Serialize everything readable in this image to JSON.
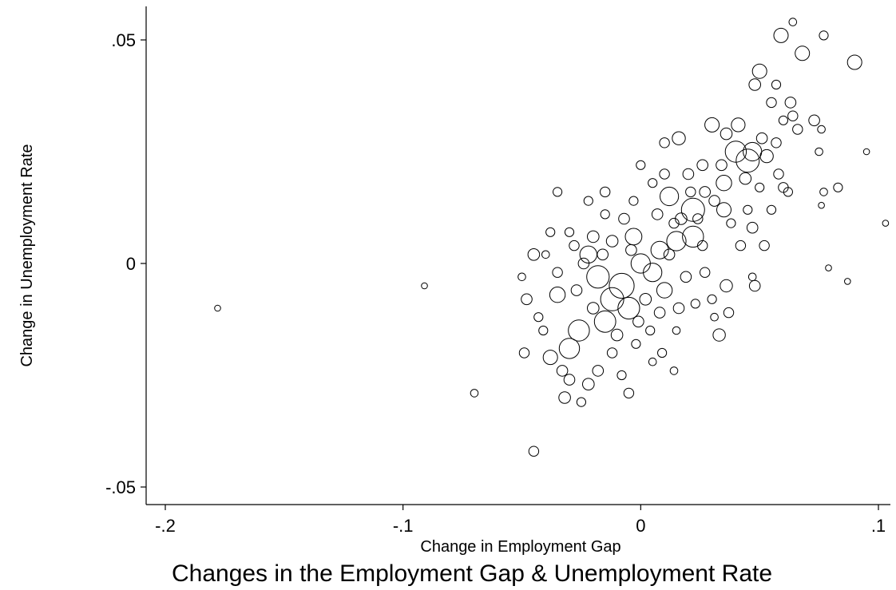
{
  "chart_data": {
    "type": "scatter",
    "title": "Changes in the Employment Gap & Unemployment Rate",
    "xlabel": "Change in Employment Gap",
    "ylabel": "Change in Unemployment Rate",
    "xlim": [
      -0.2,
      0.1
    ],
    "ylim": [
      -0.05,
      0.05
    ],
    "x_ticks": [
      {
        "value": -0.2,
        "label": "-.2"
      },
      {
        "value": -0.1,
        "label": "-.1"
      },
      {
        "value": 0,
        "label": "0"
      },
      {
        "value": 0.1,
        "label": ".1"
      }
    ],
    "y_ticks": [
      {
        "value": -0.05,
        "label": "-.05"
      },
      {
        "value": 0,
        "label": "0"
      },
      {
        "value": 0.05,
        "label": ".05"
      }
    ],
    "grid": false,
    "legend": "none",
    "marker": "hollow circle, size proportional to weight",
    "colors": {
      "marker": "#000000",
      "background": "#ffffff"
    },
    "points": [
      {
        "x": -0.178,
        "y": -0.01,
        "w": 1
      },
      {
        "x": -0.091,
        "y": -0.005,
        "w": 1
      },
      {
        "x": -0.07,
        "y": -0.029,
        "w": 2
      },
      {
        "x": -0.045,
        "y": -0.042,
        "w": 4
      },
      {
        "x": 0.059,
        "y": 0.051,
        "w": 10
      },
      {
        "x": 0.064,
        "y": 0.054,
        "w": 2
      },
      {
        "x": 0.068,
        "y": 0.047,
        "w": 10
      },
      {
        "x": 0.077,
        "y": 0.051,
        "w": 3
      },
      {
        "x": 0.09,
        "y": 0.045,
        "w": 10
      },
      {
        "x": 0.095,
        "y": 0.025,
        "w": 1
      },
      {
        "x": 0.103,
        "y": 0.009,
        "w": 1
      },
      {
        "x": 0.087,
        "y": -0.004,
        "w": 1
      },
      {
        "x": 0.079,
        "y": -0.001,
        "w": 1
      },
      {
        "x": 0.083,
        "y": 0.017,
        "w": 3
      },
      {
        "x": 0.076,
        "y": 0.03,
        "w": 2
      },
      {
        "x": 0.073,
        "y": 0.032,
        "w": 5
      },
      {
        "x": 0.077,
        "y": 0.016,
        "w": 2
      },
      {
        "x": 0.076,
        "y": 0.013,
        "w": 1
      },
      {
        "x": 0.075,
        "y": 0.025,
        "w": 2
      },
      {
        "x": 0.05,
        "y": 0.043,
        "w": 10
      },
      {
        "x": 0.048,
        "y": 0.04,
        "w": 6
      },
      {
        "x": 0.057,
        "y": 0.04,
        "w": 3
      },
      {
        "x": 0.055,
        "y": 0.036,
        "w": 4
      },
      {
        "x": 0.063,
        "y": 0.036,
        "w": 5
      },
      {
        "x": 0.06,
        "y": 0.032,
        "w": 3
      },
      {
        "x": 0.066,
        "y": 0.03,
        "w": 4
      },
      {
        "x": 0.064,
        "y": 0.033,
        "w": 4
      },
      {
        "x": 0.045,
        "y": 0.023,
        "w": 30
      },
      {
        "x": 0.04,
        "y": 0.025,
        "w": 24
      },
      {
        "x": 0.047,
        "y": 0.025,
        "w": 18
      },
      {
        "x": 0.035,
        "y": 0.018,
        "w": 12
      },
      {
        "x": 0.03,
        "y": 0.031,
        "w": 10
      },
      {
        "x": 0.022,
        "y": 0.012,
        "w": 30
      },
      {
        "x": 0.022,
        "y": 0.006,
        "w": 24
      },
      {
        "x": 0.015,
        "y": 0.005,
        "w": 20
      },
      {
        "x": 0.012,
        "y": 0.015,
        "w": 18
      },
      {
        "x": 0.016,
        "y": 0.028,
        "w": 8
      },
      {
        "x": 0.035,
        "y": 0.012,
        "w": 10
      },
      {
        "x": 0.047,
        "y": 0.008,
        "w": 5
      },
      {
        "x": 0.052,
        "y": 0.004,
        "w": 4
      },
      {
        "x": 0.06,
        "y": 0.017,
        "w": 4
      },
      {
        "x": 0.062,
        "y": 0.016,
        "w": 3
      },
      {
        "x": -0.008,
        "y": -0.005,
        "w": 35
      },
      {
        "x": -0.012,
        "y": -0.008,
        "w": 30
      },
      {
        "x": -0.018,
        "y": -0.003,
        "w": 28
      },
      {
        "x": -0.005,
        "y": -0.01,
        "w": 26
      },
      {
        "x": -0.015,
        "y": -0.013,
        "w": 25
      },
      {
        "x": -0.026,
        "y": -0.015,
        "w": 24
      },
      {
        "x": -0.03,
        "y": -0.019,
        "w": 22
      },
      {
        "x": 0.0,
        "y": 0.0,
        "w": 20
      },
      {
        "x": 0.005,
        "y": -0.002,
        "w": 18
      },
      {
        "x": 0.008,
        "y": 0.003,
        "w": 16
      },
      {
        "x": -0.022,
        "y": 0.002,
        "w": 15
      },
      {
        "x": -0.003,
        "y": 0.006,
        "w": 14
      },
      {
        "x": 0.01,
        "y": -0.006,
        "w": 12
      },
      {
        "x": -0.035,
        "y": -0.007,
        "w": 12
      },
      {
        "x": -0.038,
        "y": -0.021,
        "w": 10
      },
      {
        "x": -0.032,
        "y": -0.03,
        "w": 6
      },
      {
        "x": -0.03,
        "y": -0.026,
        "w": 5
      },
      {
        "x": -0.022,
        "y": -0.027,
        "w": 6
      },
      {
        "x": -0.005,
        "y": -0.029,
        "w": 4
      },
      {
        "x": -0.025,
        "y": -0.031,
        "w": 3
      },
      {
        "x": -0.045,
        "y": 0.002,
        "w": 6
      },
      {
        "x": -0.048,
        "y": -0.008,
        "w": 5
      },
      {
        "x": -0.05,
        "y": -0.003,
        "w": 2
      },
      {
        "x": -0.043,
        "y": -0.012,
        "w": 3
      },
      {
        "x": -0.049,
        "y": -0.02,
        "w": 4
      },
      {
        "x": -0.035,
        "y": 0.016,
        "w": 3
      },
      {
        "x": -0.022,
        "y": 0.014,
        "w": 3
      },
      {
        "x": -0.015,
        "y": 0.011,
        "w": 3
      },
      {
        "x": -0.015,
        "y": 0.016,
        "w": 4
      },
      {
        "x": 0.0,
        "y": 0.022,
        "w": 3
      },
      {
        "x": -0.003,
        "y": 0.014,
        "w": 3
      },
      {
        "x": 0.01,
        "y": 0.027,
        "w": 4
      },
      {
        "x": 0.033,
        "y": -0.016,
        "w": 7
      },
      {
        "x": 0.036,
        "y": -0.005,
        "w": 7
      },
      {
        "x": 0.048,
        "y": -0.005,
        "w": 5
      },
      {
        "x": 0.047,
        "y": -0.003,
        "w": 2
      },
      {
        "x": 0.037,
        "y": -0.011,
        "w": 4
      },
      {
        "x": 0.031,
        "y": -0.012,
        "w": 2
      },
      {
        "x": 0.03,
        "y": -0.008,
        "w": 3
      },
      {
        "x": 0.023,
        "y": -0.009,
        "w": 3
      },
      {
        "x": 0.014,
        "y": -0.024,
        "w": 2
      },
      {
        "x": 0.009,
        "y": -0.02,
        "w": 3
      },
      {
        "x": 0.015,
        "y": -0.015,
        "w": 2
      },
      {
        "x": 0.042,
        "y": 0.004,
        "w": 4
      },
      {
        "x": 0.038,
        "y": 0.009,
        "w": 3
      },
      {
        "x": 0.044,
        "y": 0.019,
        "w": 6
      },
      {
        "x": 0.053,
        "y": 0.024,
        "w": 8
      },
      {
        "x": 0.051,
        "y": 0.028,
        "w": 5
      },
      {
        "x": 0.041,
        "y": 0.031,
        "w": 9
      },
      {
        "x": 0.036,
        "y": 0.029,
        "w": 6
      },
      {
        "x": 0.057,
        "y": 0.027,
        "w": 4
      },
      {
        "x": 0.058,
        "y": 0.02,
        "w": 4
      },
      {
        "x": 0.026,
        "y": 0.022,
        "w": 5
      },
      {
        "x": 0.02,
        "y": 0.02,
        "w": 5
      },
      {
        "x": 0.027,
        "y": 0.016,
        "w": 5
      },
      {
        "x": 0.01,
        "y": 0.02,
        "w": 4
      },
      {
        "x": 0.005,
        "y": 0.018,
        "w": 3
      },
      {
        "x": -0.02,
        "y": 0.006,
        "w": 6
      },
      {
        "x": -0.028,
        "y": 0.004,
        "w": 4
      },
      {
        "x": -0.03,
        "y": 0.007,
        "w": 3
      },
      {
        "x": -0.038,
        "y": 0.007,
        "w": 3
      },
      {
        "x": -0.04,
        "y": 0.002,
        "w": 2
      },
      {
        "x": -0.035,
        "y": -0.002,
        "w": 4
      },
      {
        "x": -0.041,
        "y": -0.015,
        "w": 3
      },
      {
        "x": -0.033,
        "y": -0.024,
        "w": 5
      },
      {
        "x": -0.018,
        "y": -0.024,
        "w": 5
      },
      {
        "x": -0.012,
        "y": -0.02,
        "w": 4
      },
      {
        "x": -0.008,
        "y": -0.025,
        "w": 3
      },
      {
        "x": -0.002,
        "y": -0.018,
        "w": 3
      },
      {
        "x": 0.004,
        "y": -0.015,
        "w": 3
      },
      {
        "x": 0.005,
        "y": -0.022,
        "w": 2
      },
      {
        "x": 0.019,
        "y": -0.003,
        "w": 5
      },
      {
        "x": 0.027,
        "y": -0.002,
        "w": 4
      },
      {
        "x": 0.026,
        "y": 0.004,
        "w": 4
      },
      {
        "x": 0.017,
        "y": 0.01,
        "w": 6
      },
      {
        "x": 0.007,
        "y": 0.011,
        "w": 5
      },
      {
        "x": -0.007,
        "y": 0.01,
        "w": 5
      },
      {
        "x": -0.012,
        "y": 0.005,
        "w": 6
      },
      {
        "x": 0.002,
        "y": -0.008,
        "w": 6
      },
      {
        "x": -0.01,
        "y": -0.016,
        "w": 6
      },
      {
        "x": -0.02,
        "y": -0.01,
        "w": 6
      },
      {
        "x": -0.027,
        "y": -0.006,
        "w": 5
      },
      {
        "x": -0.024,
        "y": 0.0,
        "w": 5
      },
      {
        "x": -0.016,
        "y": 0.002,
        "w": 5
      },
      {
        "x": -0.004,
        "y": 0.003,
        "w": 5
      },
      {
        "x": 0.012,
        "y": 0.002,
        "w": 5
      },
      {
        "x": 0.016,
        "y": -0.01,
        "w": 5
      },
      {
        "x": 0.008,
        "y": -0.011,
        "w": 5
      },
      {
        "x": -0.001,
        "y": -0.013,
        "w": 5
      },
      {
        "x": 0.031,
        "y": 0.014,
        "w": 5
      },
      {
        "x": 0.034,
        "y": 0.022,
        "w": 5
      },
      {
        "x": 0.024,
        "y": 0.01,
        "w": 4
      },
      {
        "x": 0.021,
        "y": 0.016,
        "w": 4
      },
      {
        "x": 0.014,
        "y": 0.009,
        "w": 4
      },
      {
        "x": 0.045,
        "y": 0.012,
        "w": 3
      },
      {
        "x": 0.05,
        "y": 0.017,
        "w": 3
      },
      {
        "x": 0.055,
        "y": 0.012,
        "w": 3
      }
    ]
  }
}
